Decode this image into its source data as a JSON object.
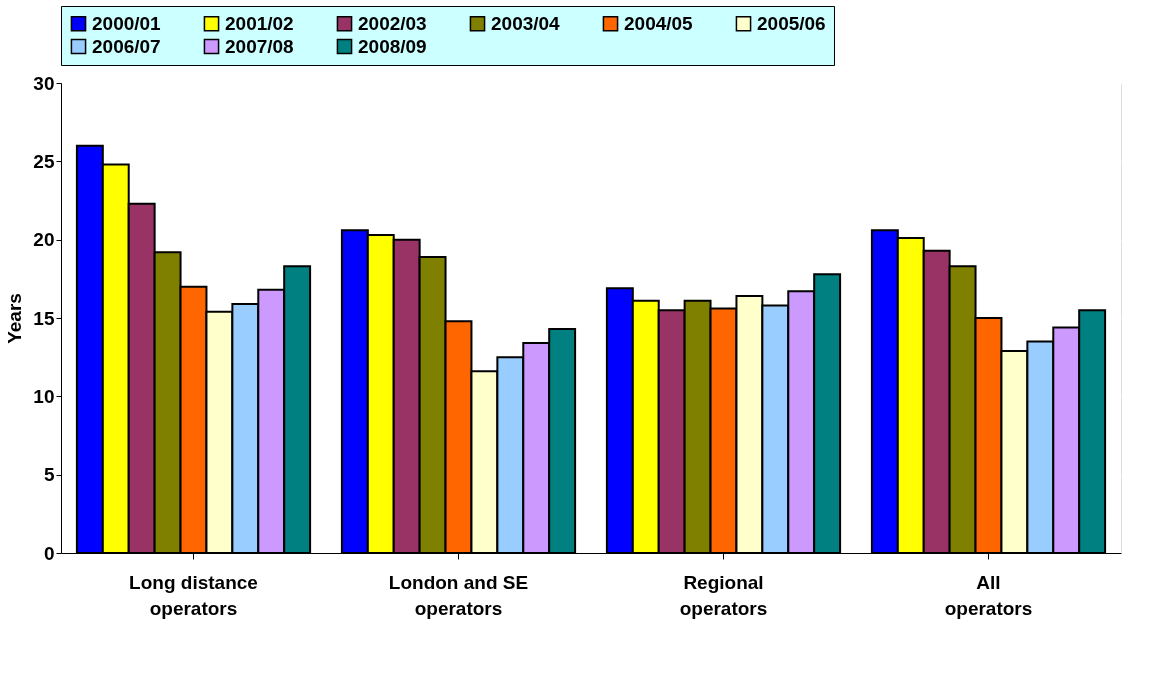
{
  "chart_data": {
    "type": "bar",
    "ylabel": "Years",
    "categories": [
      "Long distance operators",
      "London and SE operators",
      "Regional operators",
      "All operators"
    ],
    "series": [
      {
        "name": "2000/01",
        "color": "#0000ff",
        "values": [
          26.0,
          20.6,
          16.9,
          20.6
        ]
      },
      {
        "name": "2001/02",
        "color": "#ffff00",
        "values": [
          24.8,
          20.3,
          16.1,
          20.1
        ]
      },
      {
        "name": "2002/03",
        "color": "#993366",
        "values": [
          22.3,
          20.0,
          15.5,
          19.3
        ]
      },
      {
        "name": "2003/04",
        "color": "#808000",
        "values": [
          19.2,
          18.9,
          16.1,
          18.3
        ]
      },
      {
        "name": "2004/05",
        "color": "#ff6600",
        "values": [
          17.0,
          14.8,
          15.6,
          15.0
        ]
      },
      {
        "name": "2005/06",
        "color": "#ffffcc",
        "values": [
          15.4,
          11.6,
          16.4,
          12.9
        ]
      },
      {
        "name": "2006/07",
        "color": "#99ccff",
        "values": [
          15.9,
          12.5,
          15.8,
          13.5
        ]
      },
      {
        "name": "2007/08",
        "color": "#cc99ff",
        "values": [
          16.8,
          13.4,
          16.7,
          14.4
        ]
      },
      {
        "name": "2008/09",
        "color": "#008080",
        "values": [
          18.3,
          14.3,
          17.8,
          15.5
        ]
      }
    ],
    "ylim": [
      0,
      30
    ],
    "yticks": [
      0,
      5,
      10,
      15,
      20,
      25,
      30
    ],
    "grid": "y",
    "legend": "top"
  }
}
